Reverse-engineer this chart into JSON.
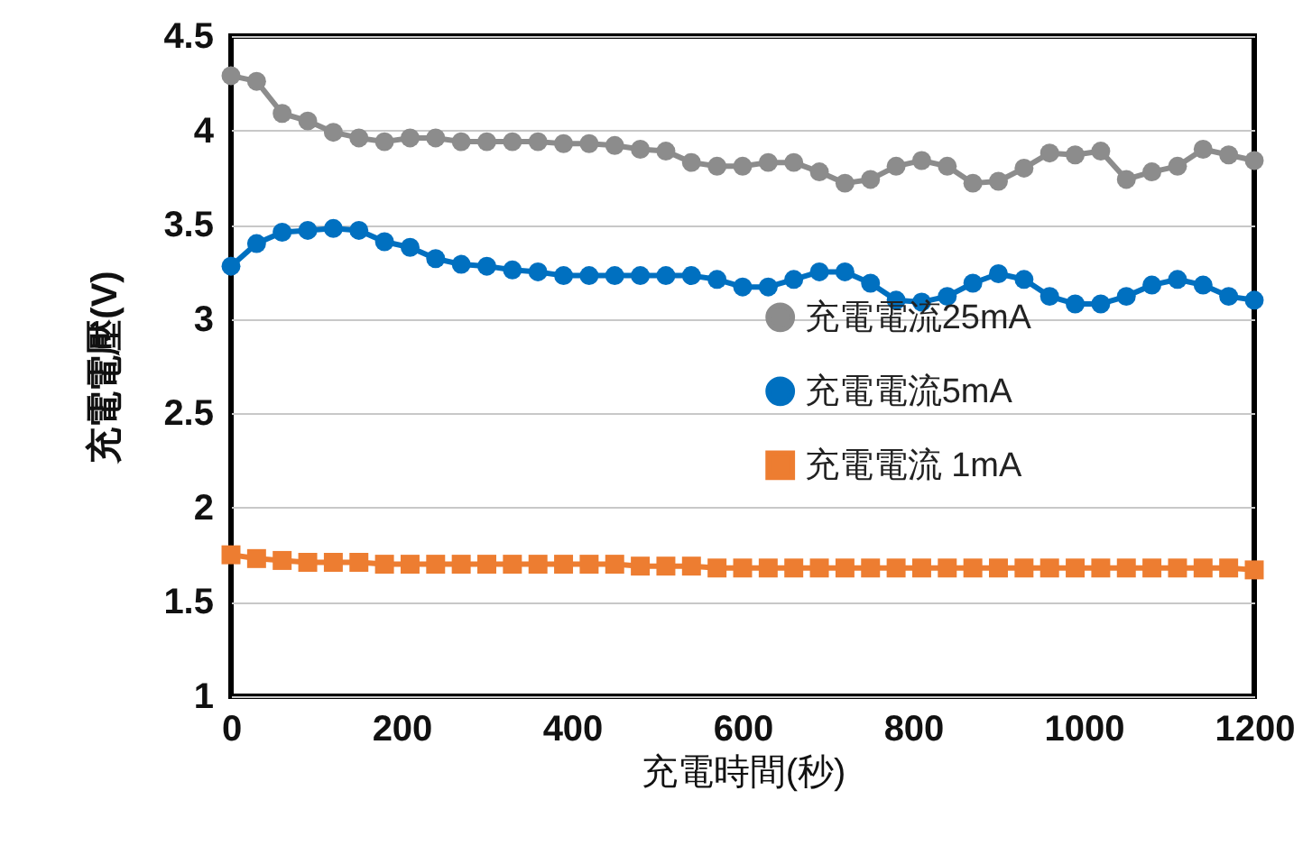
{
  "chart_data": {
    "type": "line",
    "xlabel": "充電時間(秒)",
    "ylabel": "充電電壓(V)",
    "x": [
      0,
      30,
      60,
      90,
      120,
      150,
      180,
      210,
      240,
      270,
      300,
      330,
      360,
      390,
      420,
      450,
      480,
      510,
      540,
      570,
      600,
      630,
      660,
      690,
      720,
      750,
      780,
      810,
      840,
      870,
      900,
      930,
      960,
      990,
      1020,
      1050,
      1080,
      1110,
      1140,
      1170,
      1200
    ],
    "series": [
      {
        "name": "充電電流25mA",
        "color": "#8c8c8c",
        "marker": "circle",
        "values": [
          4.29,
          4.26,
          4.09,
          4.05,
          3.99,
          3.96,
          3.94,
          3.96,
          3.96,
          3.94,
          3.94,
          3.94,
          3.94,
          3.93,
          3.93,
          3.92,
          3.9,
          3.89,
          3.83,
          3.81,
          3.81,
          3.83,
          3.83,
          3.78,
          3.72,
          3.74,
          3.81,
          3.84,
          3.81,
          3.72,
          3.73,
          3.8,
          3.88,
          3.87,
          3.89,
          3.74,
          3.78,
          3.81,
          3.9,
          3.87,
          3.84
        ]
      },
      {
        "name": "充電電流5mA",
        "color": "#0070c0",
        "marker": "circle",
        "values": [
          3.28,
          3.4,
          3.46,
          3.47,
          3.48,
          3.47,
          3.41,
          3.38,
          3.32,
          3.29,
          3.28,
          3.26,
          3.25,
          3.23,
          3.23,
          3.23,
          3.23,
          3.23,
          3.23,
          3.21,
          3.17,
          3.17,
          3.21,
          3.25,
          3.25,
          3.19,
          3.1,
          3.09,
          3.12,
          3.19,
          3.24,
          3.21,
          3.12,
          3.08,
          3.08,
          3.12,
          3.18,
          3.21,
          3.18,
          3.12,
          3.1
        ]
      },
      {
        "name": "充電電流 1mA",
        "color": "#ed7d31",
        "marker": "square",
        "values": [
          1.75,
          1.73,
          1.72,
          1.71,
          1.71,
          1.71,
          1.7,
          1.7,
          1.7,
          1.7,
          1.7,
          1.7,
          1.7,
          1.7,
          1.7,
          1.7,
          1.69,
          1.69,
          1.69,
          1.68,
          1.68,
          1.68,
          1.68,
          1.68,
          1.68,
          1.68,
          1.68,
          1.68,
          1.68,
          1.68,
          1.68,
          1.68,
          1.68,
          1.68,
          1.68,
          1.68,
          1.68,
          1.68,
          1.68,
          1.68,
          1.67
        ]
      }
    ],
    "xlim": [
      0,
      1200
    ],
    "xticks": [
      0,
      200,
      400,
      600,
      800,
      1000,
      1200
    ],
    "ylim": [
      1,
      4.5
    ],
    "yticks": [
      1,
      1.5,
      2,
      2.5,
      3,
      3.5,
      4,
      4.5
    ],
    "grid": "y",
    "legend": "right"
  }
}
